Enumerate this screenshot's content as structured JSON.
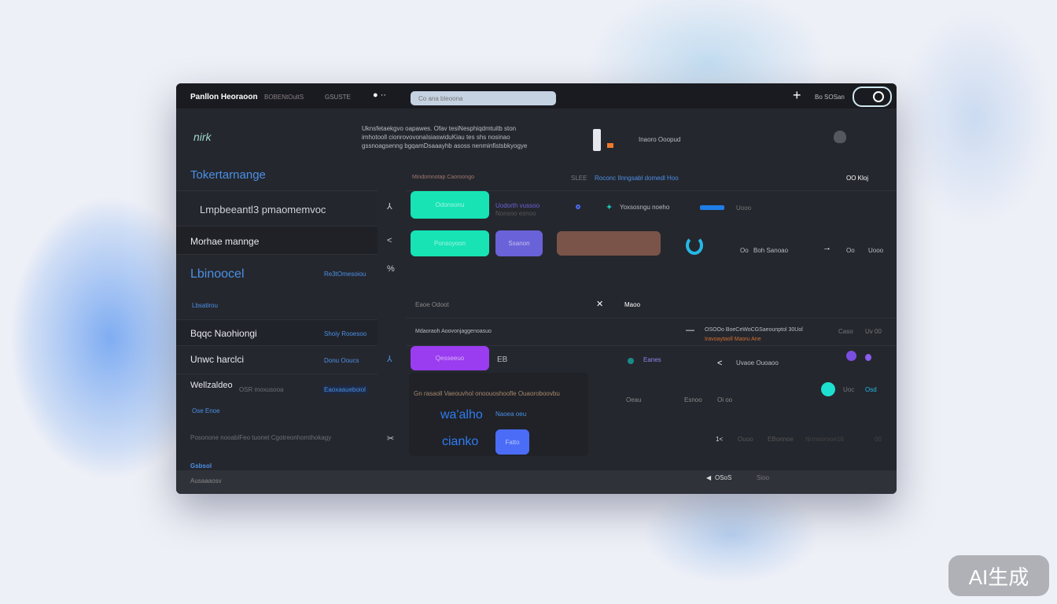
{
  "header": {
    "title": "Panllon Heoraoon",
    "subtitle": "BOBENtOultS",
    "tab": "GSUSTE",
    "search_placeholder": "Co ana bleoona",
    "user_label": "Bo SOSan"
  },
  "banner": {
    "logo": "nirk",
    "description": [
      "Uknsfetaekgvo oapawes. Ofav tesiNesphiqdmtuitb ston",
      "imhotooll cionrovovonaIsiaswiduKiau tes shs nosinao",
      "gssnoagsenng bgqamDsaaayhb asoss nenminfistsbkyogye"
    ],
    "status": "Inaoro Ooopud"
  },
  "sidebar": {
    "section_title": "Tokertarnange",
    "items": [
      {
        "label": "Lmpbeeantl3 pmaomemvoc"
      },
      {
        "label": "Morhae mannge"
      },
      {
        "label": "Lbinoocel",
        "meta": "Re3tOmesoiou",
        "sub": "Lbsatirou"
      },
      {
        "label": "Bqqc Naohiongi",
        "meta": "Shoiy Rooesoo"
      },
      {
        "label": "Unwc harclci",
        "meta": "Donu Ooucs"
      },
      {
        "label": "Wellzaldeo",
        "meta": "Eaoxaaueboiol",
        "sub2": "OSR moxusooa",
        "sub": "Ose Enoe"
      },
      {
        "label": "Posonone nooablFeo tuonet Cgotreonhomthokagy"
      },
      {
        "label": "Gsbsol"
      }
    ]
  },
  "main": {
    "row1": {
      "label": "Mindomnotap Caoroongo",
      "mid": "Roconc Ilnngsabl domedl Hoo",
      "mid_prefix": "SLEE",
      "right": "OO Kloj"
    },
    "row2": {
      "button": "Odonsonu",
      "info1": "Uodorth vussoo",
      "info2": "Nonsoo esnoo",
      "item": "Yoxsosngu noeho",
      "tail": "Uooo"
    },
    "row3": {
      "button1": "Ponsoyoon",
      "button2": "Ssanon",
      "meta1": "Oo",
      "meta2": "Boh Sanoao",
      "meta3": "Oo",
      "meta4": "Uooo",
      "footer": "Eaoe Odoot",
      "footer2": "Maoo"
    },
    "row4": {
      "label": "Mdaoraoh Aoovonjaggenoasuo",
      "status1": "OSOOo BoeCeWoCGSaeounptol 30Uol",
      "status2": "Iravoaytaoll Maoru Ane",
      "col1": "Caso",
      "col2": "Uv 00"
    },
    "row5": {
      "button": "Qesseeuo",
      "glyph": "EB",
      "item1": "Eanes",
      "item2": "Uvaoe Ouoaoo"
    },
    "card": {
      "heading": "Gn rasaoll Vaeouvhol onoouoshoofle Ouaoroboovbu",
      "big1": "wa'alho",
      "small1": "Naoea oeu",
      "big2": "cianko",
      "button": "Fatto"
    },
    "row6": {
      "a": "Oeau",
      "b": "Esnoo",
      "c": "Oi oo",
      "d": "Uoc",
      "e": "Osd"
    },
    "row7": {
      "a": "1<",
      "b": "Ouoo",
      "c": "EBonnoe",
      "d": "Nrmoorooe16",
      "e": "00"
    }
  },
  "footer": {
    "left": "Ausaaaosv",
    "right1": "OSoS",
    "right2": "Sioo"
  },
  "watermark": "AI生成",
  "colors": {
    "accent_teal": "#17e3b5",
    "accent_purple": "#9a3cf0",
    "accent_indigo": "#6a62d8",
    "accent_blue": "#4a6cf7",
    "accent_brown": "#7a5448",
    "text_blue": "#4a90e6"
  }
}
